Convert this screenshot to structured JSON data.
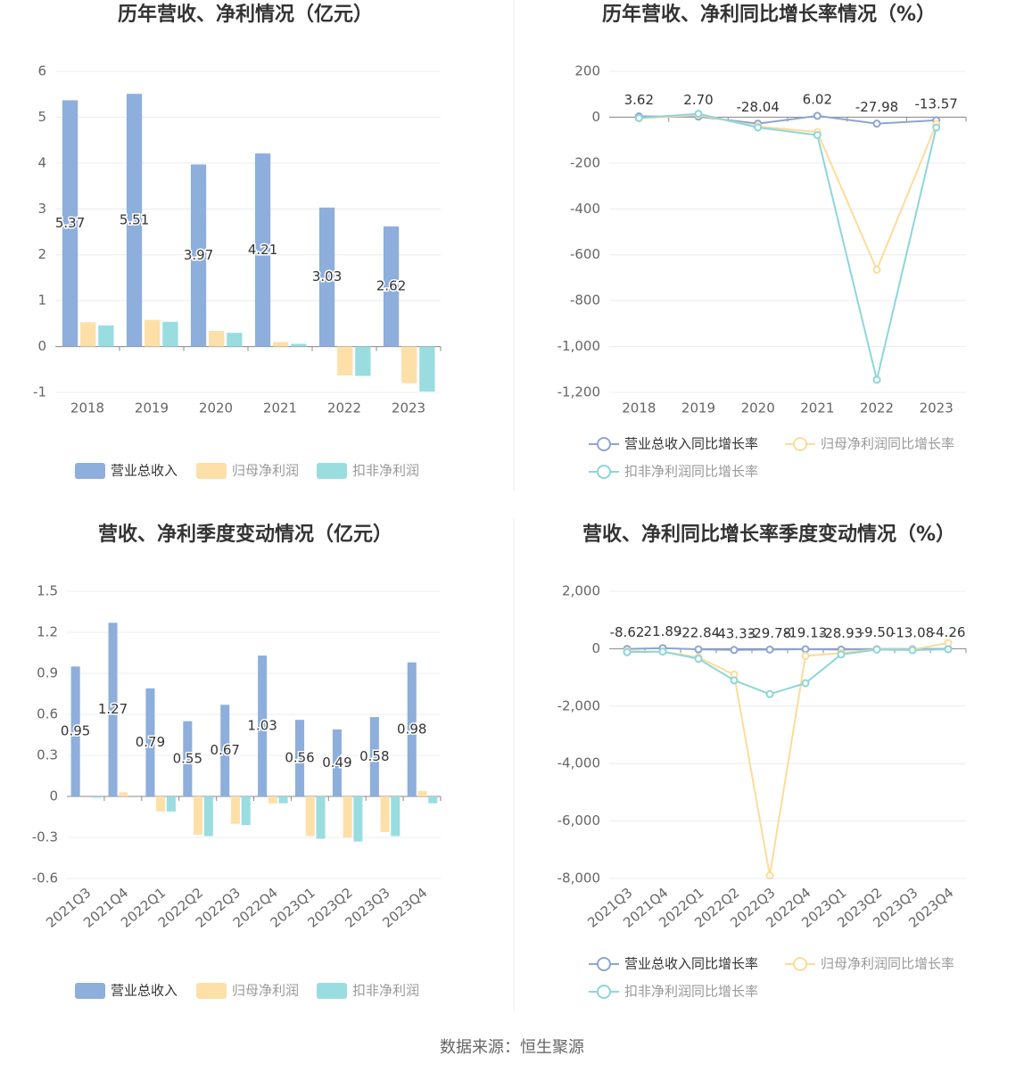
{
  "chart_data": [
    {
      "type": "bar",
      "title": "历年营收、净利情况（亿元）",
      "categories": [
        "2018",
        "2019",
        "2020",
        "2021",
        "2022",
        "2023"
      ],
      "series": [
        {
          "name": "营业总收入",
          "color": "#8eaedb",
          "values": [
            5.37,
            5.51,
            3.97,
            4.21,
            3.03,
            2.62
          ]
        },
        {
          "name": "归母净利润",
          "color": "#fddfa8",
          "values": [
            0.53,
            0.58,
            0.34,
            0.1,
            -0.63,
            -0.8
          ]
        },
        {
          "name": "扣非净利润",
          "color": "#99dde0",
          "values": [
            0.46,
            0.54,
            0.3,
            0.06,
            -0.64,
            -0.98
          ]
        }
      ],
      "ylim": [
        -1,
        6
      ],
      "yticks": [
        -1,
        0,
        1,
        2,
        3,
        4,
        5,
        6
      ],
      "grid": true
    },
    {
      "type": "line",
      "title": "历年营收、净利同比增长率情况（%）",
      "categories": [
        "2018",
        "2019",
        "2020",
        "2021",
        "2022",
        "2023"
      ],
      "series": [
        {
          "name": "营业总收入同比增长率",
          "color": "#8da4d4",
          "values": [
            3.62,
            2.7,
            -28.04,
            6.02,
            -27.98,
            -13.57
          ],
          "value_labels": [
            "3.62",
            "2.70",
            "-28.04",
            "6.02",
            "-27.98",
            "-13.57"
          ]
        },
        {
          "name": "归母净利润同比增长率",
          "color": "#fddb9a",
          "values": [
            -5,
            10,
            -40,
            -65,
            -665,
            -30
          ]
        },
        {
          "name": "扣非净利润同比增长率",
          "color": "#8dd6d9",
          "values": [
            -3,
            15,
            -45,
            -78,
            -1145,
            -45
          ]
        }
      ],
      "ylim": [
        -1200,
        200
      ],
      "yticks": [
        {
          "value": -1200,
          "label": "-1,200"
        },
        {
          "value": -1000,
          "label": "-1,000"
        },
        -800,
        -600,
        -400,
        -200,
        0,
        200
      ],
      "grid": true
    },
    {
      "type": "bar",
      "title": "营收、净利季度变动情况（亿元）",
      "categories": [
        "2021Q3",
        "2021Q4",
        "2022Q1",
        "2022Q2",
        "2022Q3",
        "2022Q4",
        "2023Q1",
        "2023Q2",
        "2023Q3",
        "2023Q4"
      ],
      "series": [
        {
          "name": "营业总收入",
          "color": "#8eaedb",
          "values": [
            0.95,
            1.27,
            0.79,
            0.55,
            0.67,
            1.03,
            0.56,
            0.49,
            0.58,
            0.98
          ]
        },
        {
          "name": "归母净利润",
          "color": "#fddfa8",
          "values": [
            0,
            0.03,
            -0.11,
            -0.28,
            -0.2,
            -0.05,
            -0.29,
            -0.3,
            -0.26,
            0.04
          ]
        },
        {
          "name": "扣非净利润",
          "color": "#99dde0",
          "values": [
            -0.01,
            0,
            -0.11,
            -0.29,
            -0.21,
            -0.05,
            -0.31,
            -0.33,
            -0.29,
            -0.05
          ]
        }
      ],
      "ylim": [
        -0.6,
        1.5
      ],
      "yticks": [
        -0.6,
        -0.3,
        0,
        0.3,
        0.6,
        0.9,
        1.2,
        1.5
      ],
      "grid": true
    },
    {
      "type": "line",
      "title": "营收、净利同比增长率季度变动情况（%）",
      "categories": [
        "2021Q3",
        "2021Q4",
        "2022Q1",
        "2022Q2",
        "2022Q3",
        "2022Q4",
        "2023Q1",
        "2023Q2",
        "2023Q3",
        "2023Q4"
      ],
      "series": [
        {
          "name": "营业总收入同比增长率",
          "color": "#8da4d4",
          "values": [
            -8.62,
            21.89,
            -22.84,
            -43.33,
            -29.78,
            -19.13,
            -28.93,
            -9.5,
            -13.08,
            -4.26
          ],
          "value_labels": [
            "-8.62",
            "21.89",
            "-22.84",
            "-43.33",
            "-29.78",
            "-19.13",
            "-28.93",
            "-9.50",
            "-13.08",
            "-4.26"
          ]
        },
        {
          "name": "归母净利润同比增长率",
          "color": "#fddb9a",
          "values": [
            -80,
            -100,
            -300,
            -900,
            -7900,
            -250,
            -150,
            -20,
            -30,
            200
          ]
        },
        {
          "name": "扣非净利润同比增长率",
          "color": "#8dd6d9",
          "values": [
            -120,
            -100,
            -350,
            -1100,
            -1580,
            -1200,
            -200,
            -30,
            -50,
            -20
          ]
        }
      ],
      "ylim": [
        -8000,
        2000
      ],
      "yticks": [
        {
          "value": -8000,
          "label": "-8,000"
        },
        {
          "value": -6000,
          "label": "-6,000"
        },
        {
          "value": -4000,
          "label": "-4,000"
        },
        {
          "value": -2000,
          "label": "-2,000"
        },
        0,
        {
          "value": 2000,
          "label": "2,000"
        }
      ],
      "grid": true
    }
  ],
  "footer": "数据来源：恒生聚源"
}
